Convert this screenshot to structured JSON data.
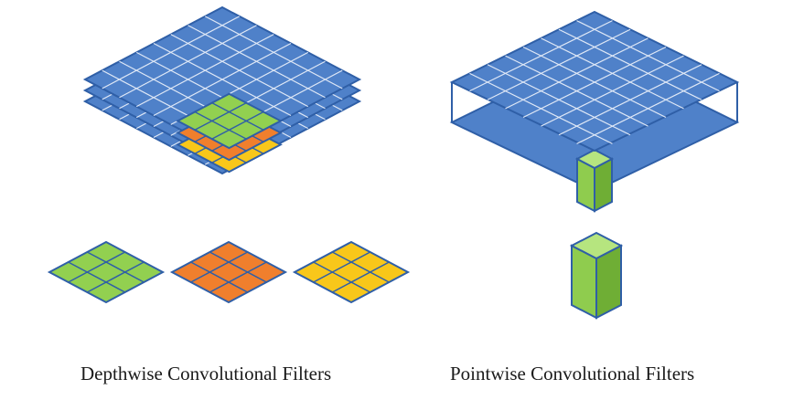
{
  "captions": {
    "depthwise": "Depthwise Convolutional Filters",
    "pointwise": "Pointwise Convolutional Filters"
  },
  "colors": {
    "blue": "#4f81c9",
    "blue_line": "#2f5fa7",
    "grid_line": "#dfe8f6",
    "green": "#92d050",
    "green_line": "#4f81c9",
    "orange": "#f07f2d",
    "yellow": "#f8c71a",
    "cube_green": "#8fcc4e",
    "cube_green_dark": "#6fae35",
    "cube_green_light": "#b6e57f"
  },
  "diagram": {
    "input_grid_size": 8,
    "input_layers": 3,
    "filter_kernel_size": 3,
    "depthwise_filters": [
      {
        "name": "green-filter",
        "color": "green"
      },
      {
        "name": "orange-filter",
        "color": "orange"
      },
      {
        "name": "yellow-filter",
        "color": "yellow"
      }
    ],
    "pointwise_filter": "1x1 cube"
  }
}
